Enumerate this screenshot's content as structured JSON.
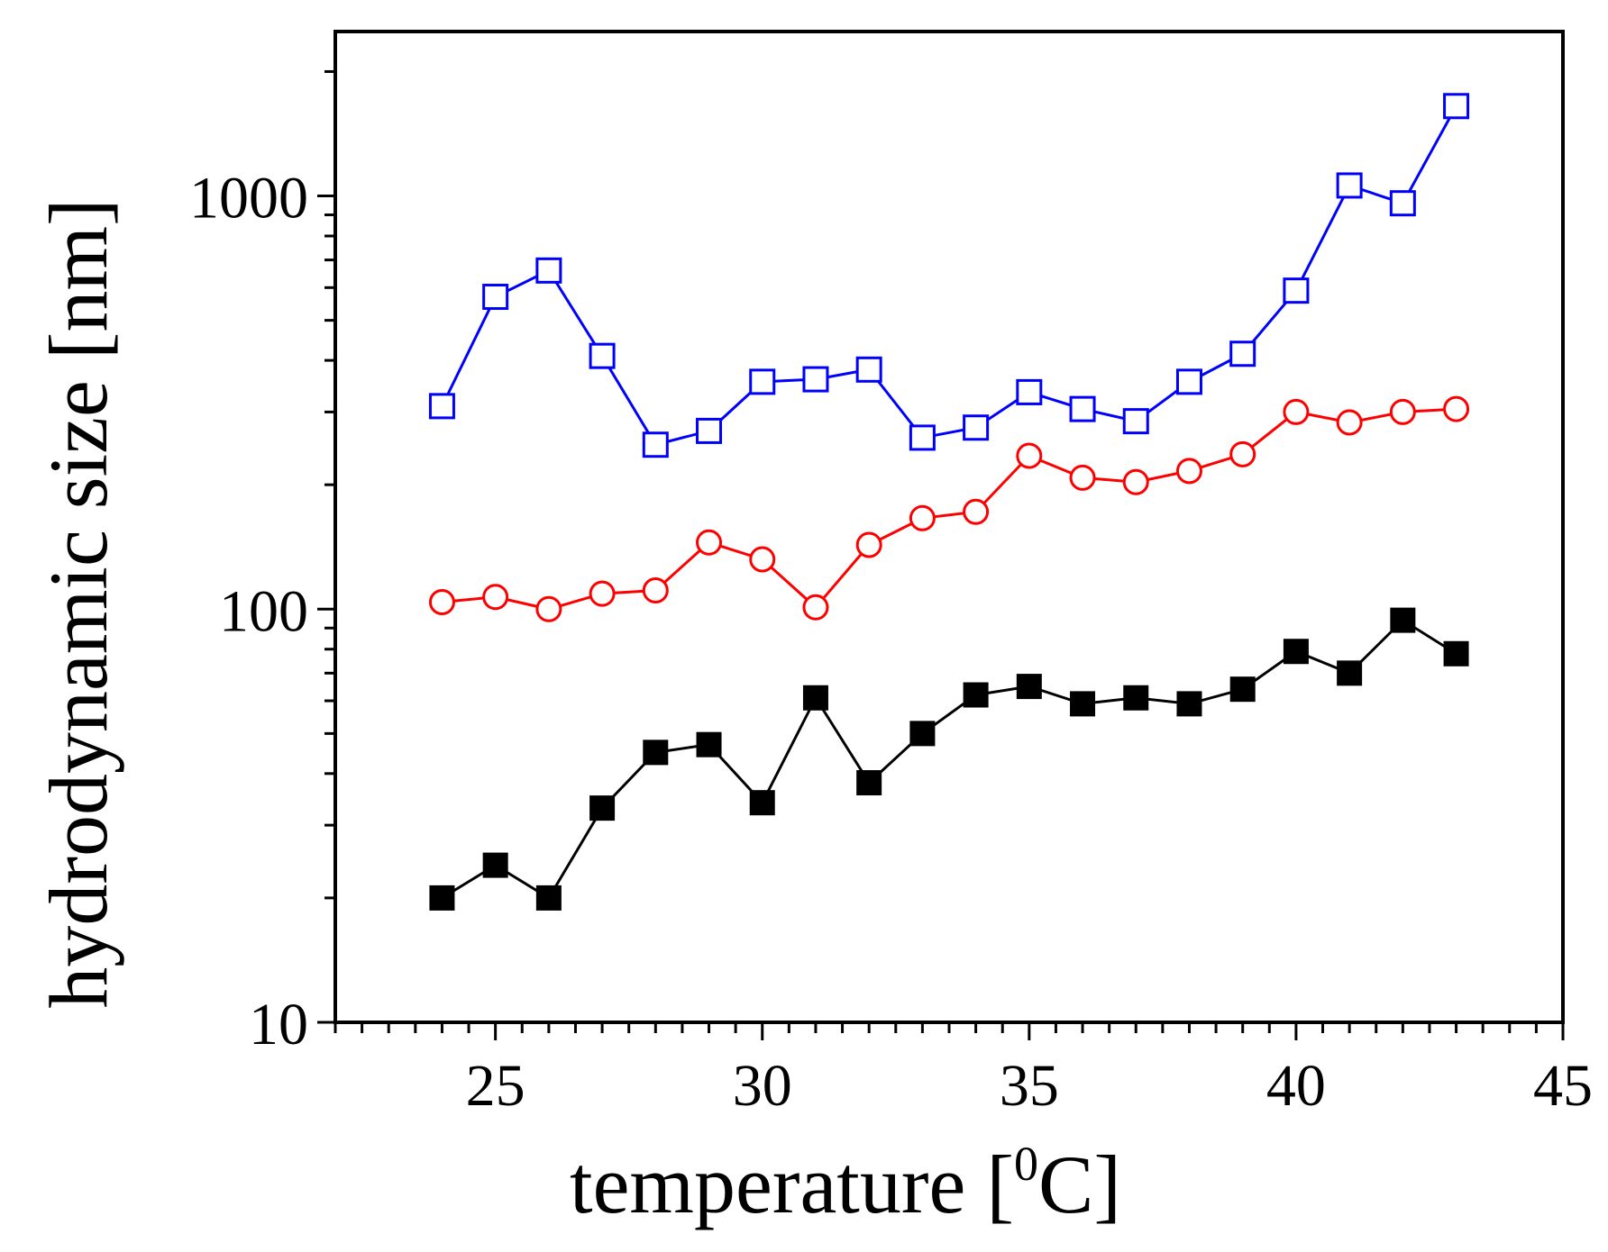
{
  "chart_data": {
    "type": "line",
    "title": "",
    "xlabel": "temperature",
    "xlabel_unit_prefix": "[",
    "xlabel_unit_sup": "0",
    "xlabel_unit_suffix": "C]",
    "ylabel": "hydrodynamic size [nm]",
    "xlim": [
      22,
      45
    ],
    "ylim": [
      10,
      2500
    ],
    "yscale": "log",
    "x_ticks": [
      25,
      30,
      35,
      40,
      45
    ],
    "x_tick_labels": [
      "25",
      "30",
      "35",
      "40",
      "45"
    ],
    "y_ticks": [
      10,
      100,
      1000
    ],
    "y_tick_labels": [
      "10",
      "100",
      "1000"
    ],
    "grid": false,
    "x": [
      24,
      25,
      26,
      27,
      28,
      29,
      30,
      31,
      32,
      33,
      34,
      35,
      36,
      37,
      38,
      39,
      40,
      41,
      42,
      43
    ],
    "series": [
      {
        "name": "series-blue-open-squares",
        "color": "#0000ff",
        "marker": "open-square",
        "values": [
          310,
          570,
          660,
          410,
          250,
          270,
          355,
          360,
          380,
          260,
          275,
          335,
          305,
          285,
          355,
          415,
          590,
          1060,
          960,
          1650
        ]
      },
      {
        "name": "series-red-open-circles",
        "color": "#ff0000",
        "marker": "open-circle",
        "values": [
          104,
          107,
          100,
          109,
          111,
          145,
          132,
          101,
          143,
          166,
          172,
          235,
          208,
          203,
          216,
          237,
          300,
          283,
          300,
          305
        ]
      },
      {
        "name": "series-black-filled-squares",
        "color": "#000000",
        "marker": "filled-square",
        "values": [
          20,
          24,
          20,
          33,
          45,
          47,
          34,
          61,
          38,
          50,
          62,
          65,
          59,
          61,
          59,
          64,
          79,
          70,
          94,
          78
        ]
      }
    ]
  }
}
